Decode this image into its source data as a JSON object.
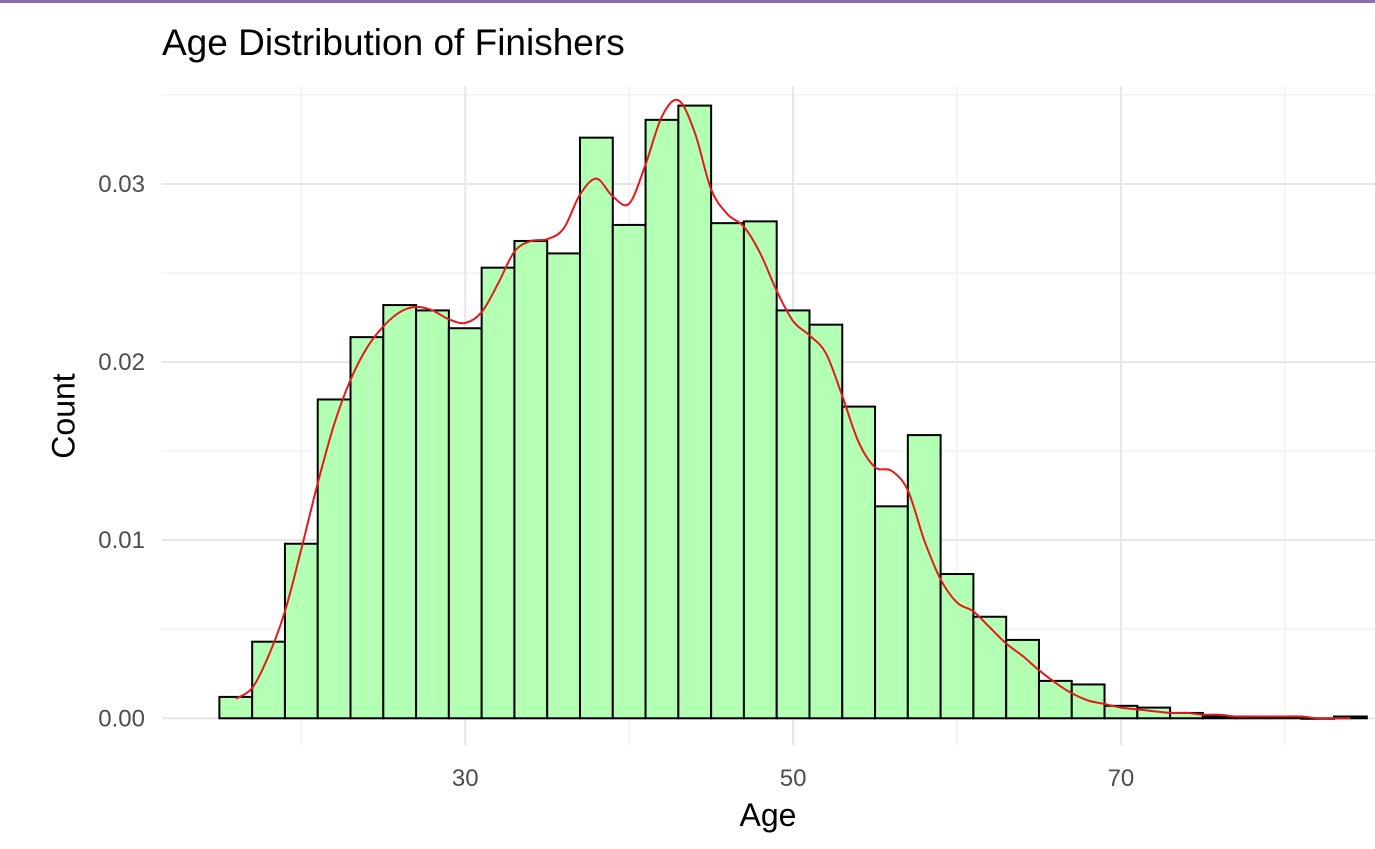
{
  "chart_data": {
    "type": "bar",
    "title": "Age Distribution of Finishers",
    "xlabel": "Age",
    "ylabel": "Count",
    "xlim": [
      11.5,
      85.5
    ],
    "ylim": [
      -0.0015,
      0.0355
    ],
    "x_ticks": [
      30,
      50,
      70
    ],
    "x_tick_labels": [
      "30",
      "50",
      "70"
    ],
    "y_ticks": [
      0.0,
      0.01,
      0.02,
      0.03
    ],
    "y_tick_labels": [
      "0.00",
      "0.01",
      "0.02",
      "0.03"
    ],
    "bin_width": 2,
    "bin_start": 15,
    "values": [
      0.0012,
      0.0043,
      0.0098,
      0.0179,
      0.0214,
      0.0232,
      0.0229,
      0.0219,
      0.0253,
      0.0268,
      0.0261,
      0.0326,
      0.0277,
      0.0336,
      0.0344,
      0.0278,
      0.0279,
      0.0229,
      0.0221,
      0.0175,
      0.0119,
      0.0159,
      0.0081,
      0.0057,
      0.0044,
      0.0021,
      0.0019,
      0.0007,
      0.0006,
      0.0003,
      0.0001,
      0.0001,
      0.0001,
      0.0,
      0.0001
    ],
    "density": {
      "name": "density",
      "x": [
        16,
        17,
        18,
        19,
        20,
        21,
        22,
        23,
        24,
        25,
        26,
        27,
        28,
        29,
        30,
        31,
        32,
        33,
        34,
        35,
        36,
        37,
        38,
        39,
        40,
        41,
        42,
        43,
        44,
        45,
        46,
        47,
        48,
        49,
        50,
        51,
        52,
        53,
        54,
        55,
        56,
        57,
        58,
        59,
        60,
        61,
        62,
        63,
        64,
        65,
        66,
        67,
        68,
        69,
        70,
        71,
        72,
        73,
        74,
        75,
        76,
        77,
        78,
        79,
        80,
        81,
        82,
        83,
        84
      ],
      "y": [
        0.0011,
        0.0017,
        0.0035,
        0.006,
        0.0095,
        0.0132,
        0.0165,
        0.019,
        0.0208,
        0.022,
        0.0228,
        0.0231,
        0.0229,
        0.0224,
        0.0222,
        0.0228,
        0.0244,
        0.0262,
        0.0268,
        0.0269,
        0.0275,
        0.0294,
        0.0303,
        0.0293,
        0.0289,
        0.0311,
        0.0338,
        0.0347,
        0.0329,
        0.0297,
        0.0283,
        0.0276,
        0.0261,
        0.024,
        0.0223,
        0.0215,
        0.0205,
        0.0181,
        0.0155,
        0.0141,
        0.0139,
        0.0128,
        0.01,
        0.0078,
        0.0065,
        0.006,
        0.0051,
        0.0042,
        0.0035,
        0.0027,
        0.002,
        0.0014,
        0.001,
        0.0008,
        0.0006,
        0.0005,
        0.0004,
        0.0003,
        0.0003,
        0.0002,
        0.0002,
        0.0001,
        0.0001,
        0.0001,
        0.0001,
        0.0001,
        0.0,
        0.0,
        0.0
      ]
    },
    "grid": true,
    "colors": {
      "bar_fill": "#b3ffb3",
      "bar_stroke": "#000000",
      "density_line": "#e31a1c",
      "grid_major": "#e6e6e6",
      "grid_minor": "#f2f2f2"
    }
  }
}
